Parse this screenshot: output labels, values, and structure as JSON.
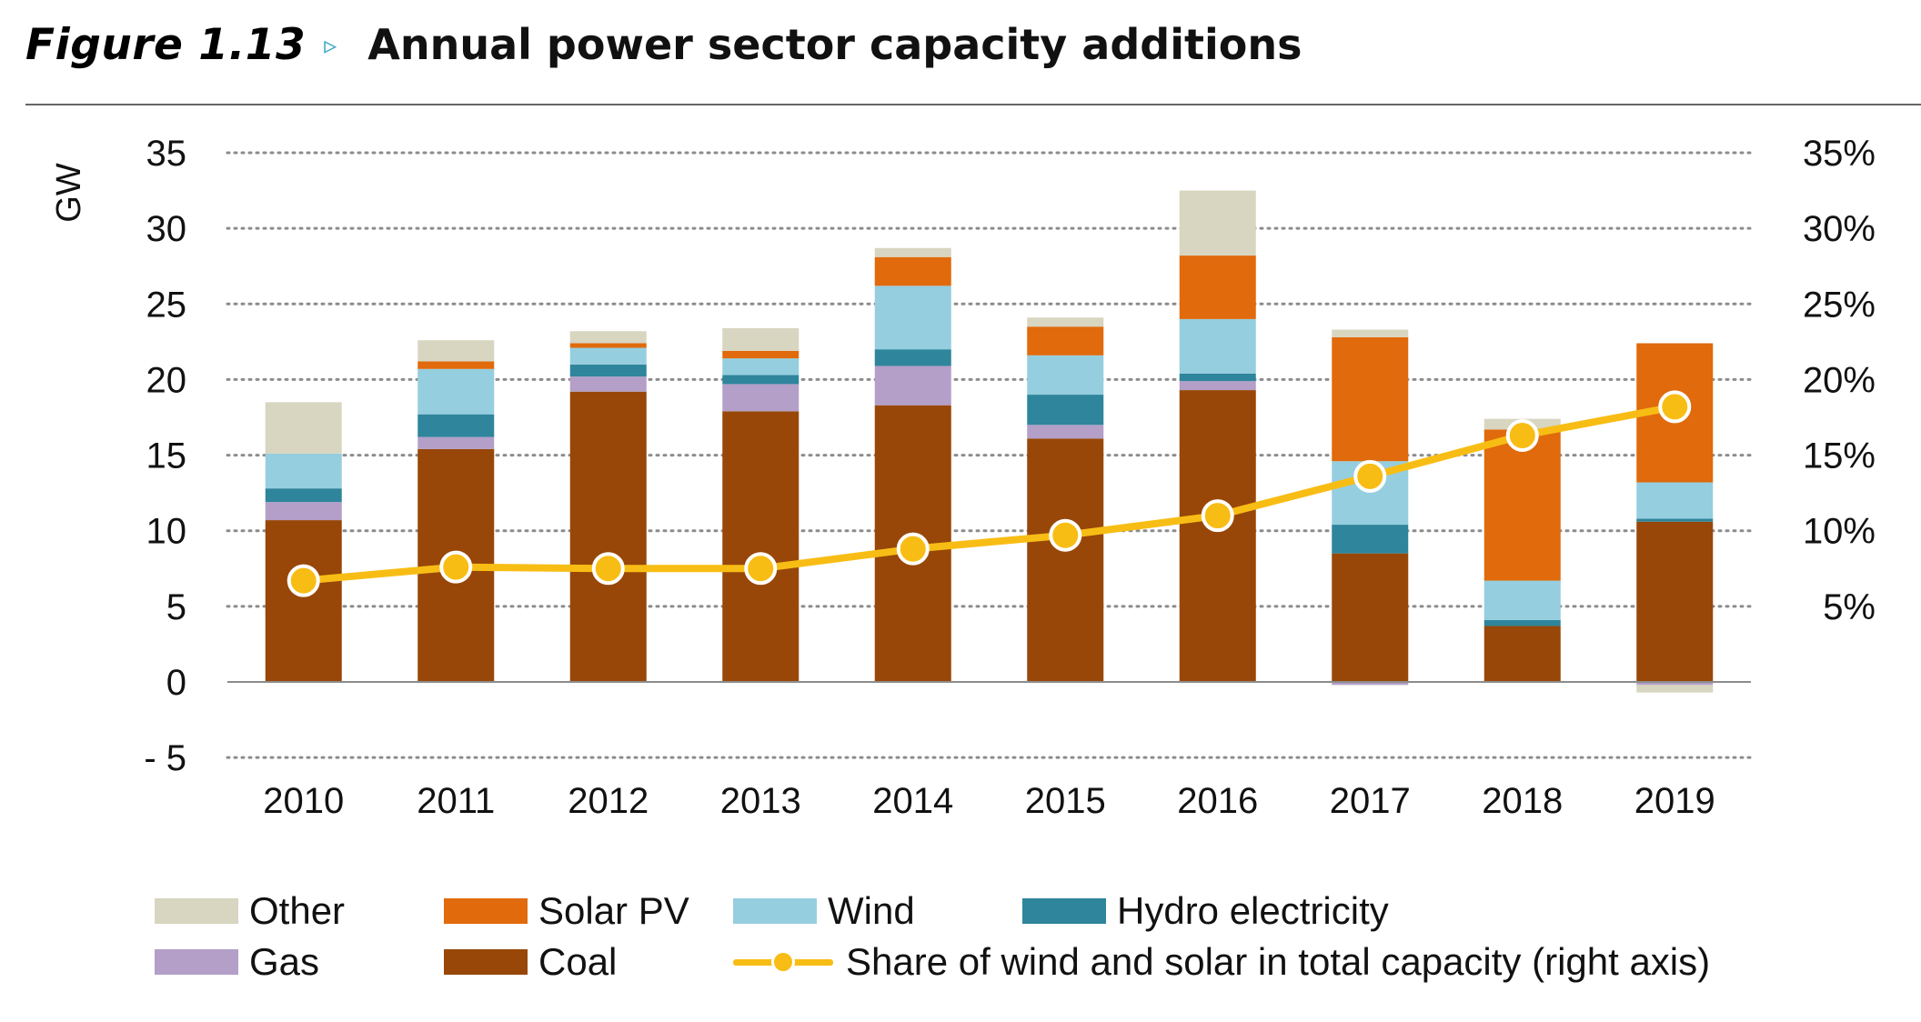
{
  "figure": {
    "number": "Figure 1.13",
    "arrow": "▹",
    "title": "Annual power sector capacity additions"
  },
  "colors": {
    "Other": "#d8d5c0",
    "Solar PV": "#e06a0c",
    "Wind": "#95cedf",
    "Hydro electricity": "#2e859c",
    "Gas": "#b39fc8",
    "Coal": "#984708",
    "share_line": "#f8bd14",
    "grid": "#8c8c8c",
    "axis": "#8c8c8c"
  },
  "chart_data": {
    "type": "bar",
    "stacked": true,
    "categories": [
      "2010",
      "2011",
      "2012",
      "2013",
      "2014",
      "2015",
      "2016",
      "2017",
      "2018",
      "2019"
    ],
    "ylabel": "GW",
    "ylim": [
      -5,
      35
    ],
    "yticks": [
      -5,
      0,
      5,
      10,
      15,
      20,
      25,
      30,
      35
    ],
    "ytick_labels": [
      "- 5",
      "0",
      "5",
      "10",
      "15",
      "20",
      "25",
      "30",
      "35"
    ],
    "y2lim": [
      0,
      0.35
    ],
    "y2ticks": [
      0.05,
      0.1,
      0.15,
      0.2,
      0.25,
      0.3,
      0.35
    ],
    "y2tick_labels": [
      "5%",
      "10%",
      "15%",
      "20%",
      "25%",
      "30%",
      "35%"
    ],
    "grid": true,
    "legend_position": "bottom",
    "series": [
      {
        "name": "Coal",
        "values": [
          10.7,
          15.4,
          19.2,
          17.9,
          18.3,
          16.1,
          19.3,
          8.5,
          3.7,
          10.6
        ]
      },
      {
        "name": "Gas",
        "values": [
          1.2,
          0.8,
          1.0,
          1.8,
          2.6,
          0.9,
          0.6,
          -0.2,
          0.0,
          -0.2
        ]
      },
      {
        "name": "Hydro electricity",
        "values": [
          0.9,
          1.5,
          0.8,
          0.6,
          1.1,
          2.0,
          0.5,
          1.9,
          0.4,
          0.2
        ]
      },
      {
        "name": "Wind",
        "values": [
          2.3,
          3.0,
          1.1,
          1.1,
          4.2,
          2.6,
          3.6,
          4.2,
          2.6,
          2.4
        ]
      },
      {
        "name": "Solar PV",
        "values": [
          0.0,
          0.5,
          0.3,
          0.5,
          1.9,
          1.9,
          4.2,
          8.2,
          10.0,
          9.2
        ]
      },
      {
        "name": "Other",
        "values": [
          3.4,
          1.4,
          0.8,
          1.5,
          0.6,
          0.6,
          4.3,
          0.5,
          0.7,
          -0.5
        ]
      }
    ],
    "line": {
      "name": "Share of wind and solar in total capacity (right axis)",
      "axis": "right",
      "values": [
        0.067,
        0.076,
        0.075,
        0.075,
        0.088,
        0.097,
        0.11,
        0.136,
        0.163,
        0.182
      ]
    }
  },
  "legend": {
    "items": [
      "Other",
      "Solar PV",
      "Wind",
      "Hydro electricity",
      "Gas",
      "Coal",
      "Share of wind and solar in total capacity (right axis)"
    ]
  }
}
